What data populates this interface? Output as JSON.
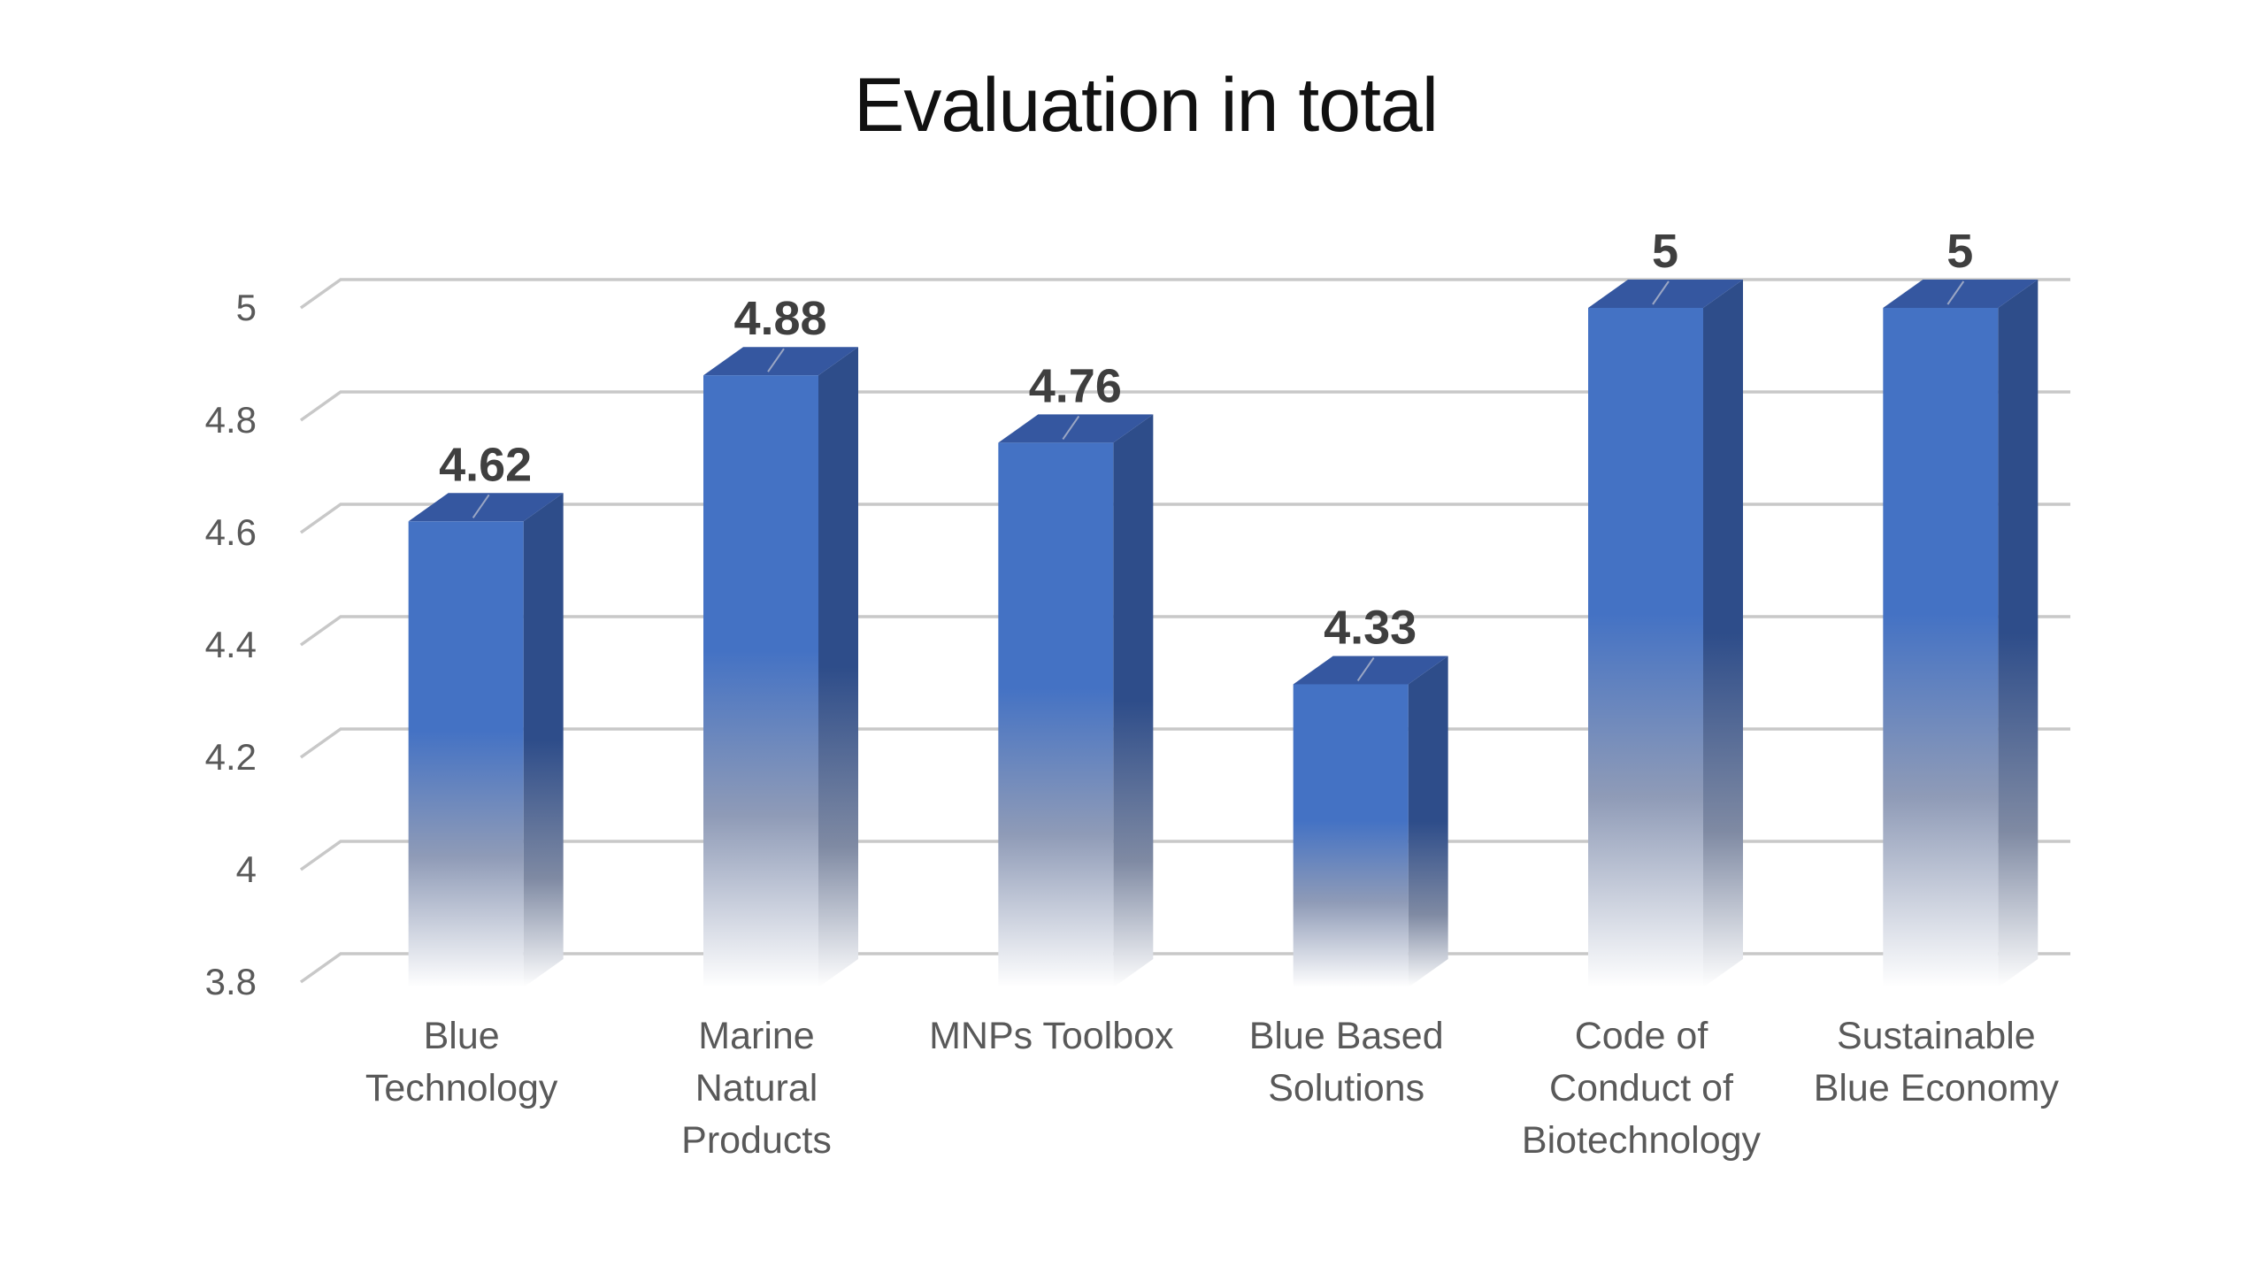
{
  "chart_data": {
    "type": "bar",
    "title": "Evaluation in total",
    "categories": [
      [
        "Blue",
        "Technology"
      ],
      [
        "Marine",
        "Natural",
        "Products"
      ],
      [
        "MNPs Toolbox"
      ],
      [
        "Blue Based",
        "Solutions"
      ],
      [
        "Code of",
        "Conduct of",
        "Biotechnology"
      ],
      [
        "Sustainable",
        "Blue Economy"
      ]
    ],
    "values": [
      4.62,
      4.88,
      4.76,
      4.33,
      5,
      5
    ],
    "data_labels": [
      "4.62",
      "4.88",
      "4.76",
      "4.33",
      "5",
      "5"
    ],
    "yticks": [
      "5",
      "4.8",
      "4.6",
      "4.4",
      "4.2",
      "4",
      "3.8"
    ],
    "ylim": [
      3.8,
      5
    ],
    "grid": true,
    "legend": "none",
    "colors": {
      "bar_front": "#4472c4",
      "bar_side": "#2e4d8a",
      "bar_top": "#3557a0",
      "grid": "#c8c8c8",
      "text": "#595959",
      "data_label": "#3f3f3f"
    }
  }
}
